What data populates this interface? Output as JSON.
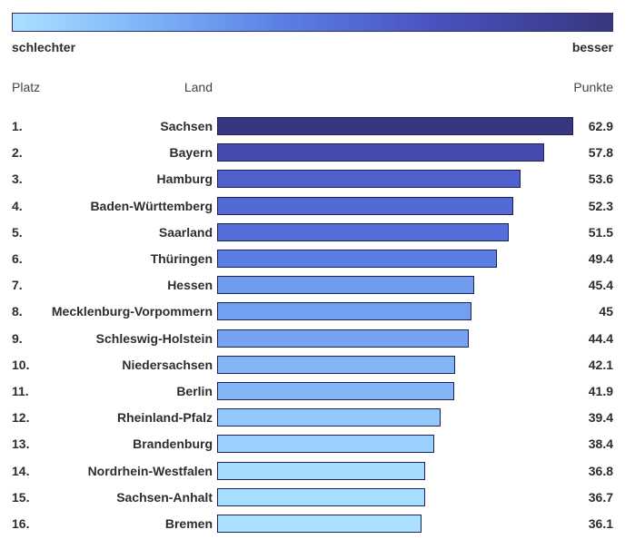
{
  "legend": {
    "low_label": "schlechter",
    "high_label": "besser"
  },
  "headers": {
    "rank": "Platz",
    "land": "Land",
    "points": "Punkte"
  },
  "colors": {
    "high": "#37377f",
    "low": "#abe1ff",
    "border": "#1e1f55"
  },
  "chart_data": {
    "type": "bar",
    "orientation": "horizontal",
    "ranks": [
      "1.",
      "2.",
      "3.",
      "4.",
      "5.",
      "6.",
      "7.",
      "8.",
      "9.",
      "10.",
      "11.",
      "12.",
      "13.",
      "14.",
      "15.",
      "16."
    ],
    "categories": [
      "Sachsen",
      "Bayern",
      "Hamburg",
      "Baden-Württemberg",
      "Saarland",
      "Thüringen",
      "Hessen",
      "Mecklenburg-Vorpommern",
      "Schleswig-Holstein",
      "Niedersachsen",
      "Berlin",
      "Rheinland-Pfalz",
      "Brandenburg",
      "Nordrhein-Westfalen",
      "Sachsen-Anhalt",
      "Bremen"
    ],
    "values": [
      62.9,
      57.8,
      53.6,
      52.3,
      51.5,
      49.4,
      45.4,
      45,
      44.4,
      42.1,
      41.9,
      39.4,
      38.4,
      36.8,
      36.7,
      36.1
    ],
    "value_labels": [
      "62.9",
      "57.8",
      "53.6",
      "52.3",
      "51.5",
      "49.4",
      "45.4",
      "45",
      "44.4",
      "42.1",
      "41.9",
      "39.4",
      "38.4",
      "36.8",
      "36.7",
      "36.1"
    ],
    "xlim": [
      0,
      62.9
    ],
    "grid": false
  }
}
